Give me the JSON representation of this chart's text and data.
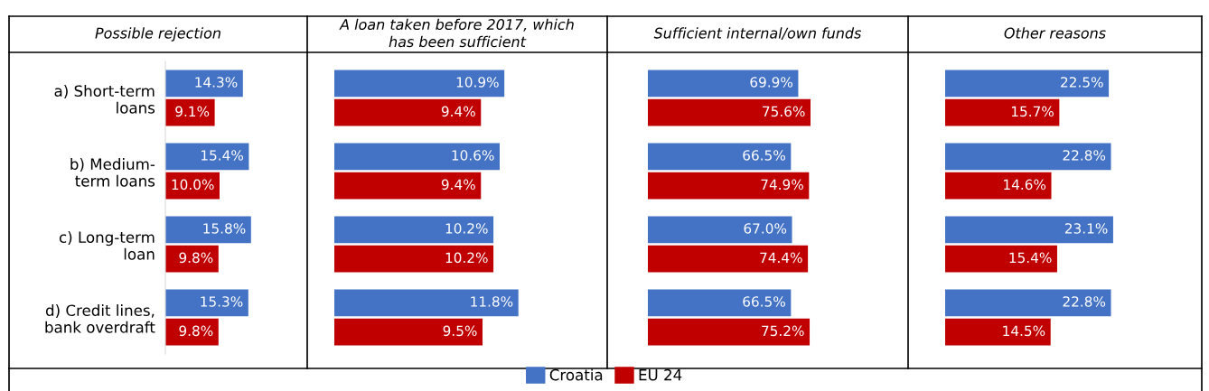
{
  "chart_data": [
    {
      "type": "bar",
      "orientation": "horizontal",
      "title": "Possible rejection",
      "categories": [
        "a) Short-term\nloans",
        "b) Medium-\nterm loans",
        "c) Long-term\nloan",
        "d) Credit lines,\nbank overdraft"
      ],
      "series": [
        {
          "name": "Croatia",
          "color": "#4472c4",
          "values": [
            14.3,
            15.4,
            15.8,
            15.3
          ],
          "value_labels": [
            "14.3%",
            "15.4%",
            "15.8%",
            "15.3%"
          ]
        },
        {
          "name": "EU 24",
          "color": "#c00000",
          "values": [
            9.1,
            10.0,
            9.8,
            9.8
          ],
          "value_labels": [
            "9.1%",
            "10.0%",
            "9.8%",
            "9.8%"
          ]
        }
      ],
      "tick_labels": "y",
      "legend": "bottom"
    },
    {
      "type": "bar",
      "orientation": "horizontal",
      "title": "A loan taken before 2017, which\nhas been sufficient",
      "categories": [
        null,
        null,
        null,
        null
      ],
      "series": [
        {
          "color": "#4472c4",
          "values": [
            10.9,
            10.6,
            10.2,
            11.8
          ],
          "value_labels": [
            "10.9%",
            "10.6%",
            "10.2%",
            "11.8%"
          ]
        },
        {
          "color": "#c00000",
          "values": [
            9.4,
            9.4,
            10.2,
            9.5
          ],
          "value_labels": [
            "9.4%",
            "9.4%",
            "10.2%",
            "9.5%"
          ]
        }
      ],
      "tick_labels": false
    },
    {
      "type": "bar",
      "orientation": "horizontal",
      "title": "Sufficient internal/own funds",
      "categories": [
        null,
        null,
        null,
        null
      ],
      "series": [
        {
          "color": "#4472c4",
          "values": [
            69.9,
            66.5,
            67.0,
            66.5
          ],
          "value_labels": [
            "69.9%",
            "66.5%",
            "67.0%",
            "66.5%"
          ]
        },
        {
          "color": "#c00000",
          "values": [
            75.6,
            74.9,
            74.4,
            75.2
          ],
          "value_labels": [
            "75.6%",
            "74.9%",
            "74.4%",
            "75.2%"
          ]
        }
      ],
      "tick_labels": false
    },
    {
      "type": "bar",
      "orientation": "horizontal",
      "title": "Other reasons",
      "categories": [
        null,
        null,
        null,
        null
      ],
      "series": [
        {
          "color": "#4472c4",
          "values": [
            22.5,
            22.8,
            23.1,
            22.8
          ],
          "value_labels": [
            "22.5%",
            "22.8%",
            "23.1%",
            "22.8%"
          ]
        },
        {
          "color": "#c00000",
          "values": [
            15.7,
            14.6,
            15.4,
            14.5
          ],
          "value_labels": [
            "15.7%",
            "14.6%",
            "15.4%",
            "14.5%"
          ]
        }
      ],
      "tick_labels": false
    }
  ]
}
